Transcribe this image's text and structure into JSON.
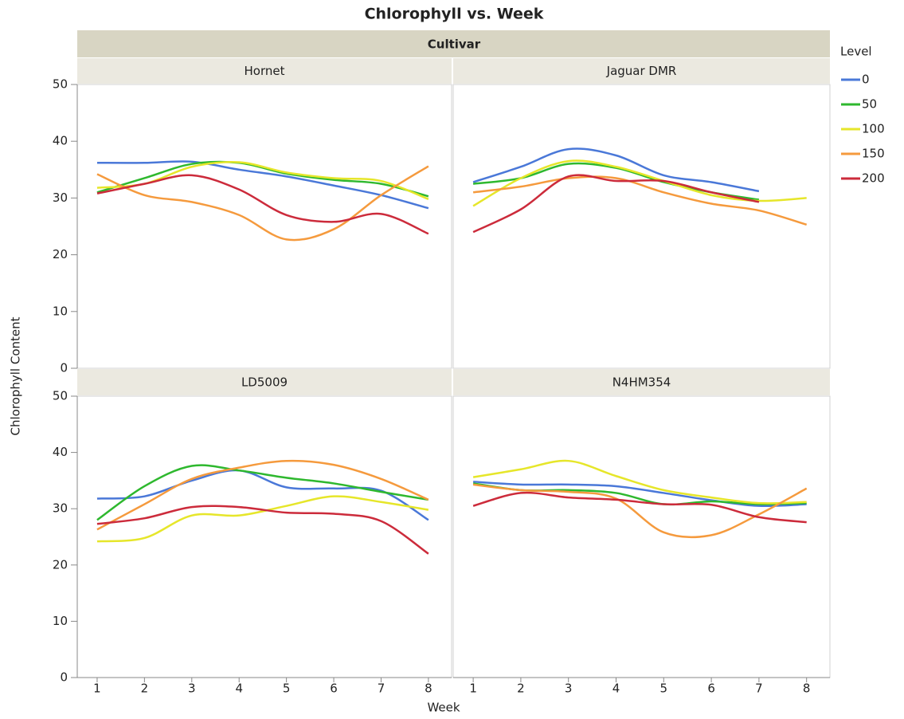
{
  "chart_data": {
    "type": "line",
    "title": "Chlorophyll vs. Week",
    "header": "Cultivar",
    "x_label": "Week",
    "y_label": "Chlorophyll Content",
    "legend_title": "Level",
    "x": [
      1,
      2,
      3,
      4,
      5,
      6,
      7,
      8
    ],
    "xlim": [
      0.58,
      8.49
    ],
    "xticks": [
      1,
      2,
      3,
      4,
      5,
      6,
      7,
      8
    ],
    "ylim": [
      0,
      50
    ],
    "yticks": [
      0,
      10,
      20,
      30,
      40,
      50
    ],
    "series": [
      {
        "name": "0",
        "color": "#4a78d8"
      },
      {
        "name": "50",
        "color": "#2eb82e"
      },
      {
        "name": "100",
        "color": "#e6e62a"
      },
      {
        "name": "150",
        "color": "#f59a3d"
      },
      {
        "name": "200",
        "color": "#cc2b3b"
      }
    ],
    "panels": [
      {
        "title": "Hornet",
        "values": [
          [
            36.2,
            36.2,
            36.4,
            35,
            33.8,
            32.2,
            30.5,
            28.2
          ],
          [
            31,
            33.5,
            36,
            36.2,
            34.3,
            33.2,
            32.5,
            30.3
          ],
          [
            31.8,
            32.5,
            35.5,
            36.3,
            34.5,
            33.5,
            33,
            29.8
          ],
          [
            34.2,
            30.5,
            29.3,
            27,
            22.7,
            24.5,
            30.5,
            35.6
          ],
          [
            30.8,
            32.5,
            34,
            31.5,
            27,
            25.8,
            27.2,
            23.7
          ]
        ]
      },
      {
        "title": "Jaguar DMR",
        "values": [
          [
            32.8,
            35.5,
            38.6,
            37.5,
            34,
            32.8,
            31.2,
            null
          ],
          [
            32.5,
            33.5,
            36,
            35.3,
            32.8,
            31,
            29.7,
            null
          ],
          [
            28.6,
            33.5,
            36.5,
            35.5,
            33,
            30.5,
            29.5,
            30
          ],
          [
            31,
            32,
            33.5,
            33.5,
            31,
            29,
            27.8,
            25.3
          ],
          [
            24,
            28,
            33.8,
            33,
            33,
            31,
            29.3,
            null
          ]
        ]
      },
      {
        "title": "LD5009",
        "values": [
          [
            31.8,
            32.2,
            35,
            36.8,
            33.8,
            33.6,
            33.2,
            28
          ],
          [
            28,
            34,
            37.6,
            36.8,
            35.5,
            34.5,
            33,
            31.6
          ],
          [
            24.2,
            24.8,
            28.8,
            28.8,
            30.5,
            32.2,
            31.2,
            29.8
          ],
          [
            26.3,
            30.8,
            35.3,
            37.3,
            38.5,
            37.8,
            35.3,
            31.6
          ],
          [
            27.3,
            28.3,
            30.3,
            30.3,
            29.3,
            29.1,
            27.8,
            22
          ]
        ]
      },
      {
        "title": "N4HM354",
        "values": [
          [
            34.8,
            34.3,
            34.3,
            34,
            32.8,
            31.5,
            30.5,
            30.8
          ],
          [
            34.5,
            33.3,
            33.3,
            32.8,
            30.8,
            31.3,
            30.8,
            31
          ],
          [
            35.6,
            37,
            38.5,
            35.8,
            33.3,
            32,
            31,
            31.2
          ],
          [
            34.3,
            33.3,
            33,
            31.8,
            25.8,
            25.3,
            29,
            33.6
          ],
          [
            30.5,
            32.8,
            32,
            31.6,
            30.8,
            30.7,
            28.5,
            27.6
          ]
        ]
      }
    ]
  }
}
